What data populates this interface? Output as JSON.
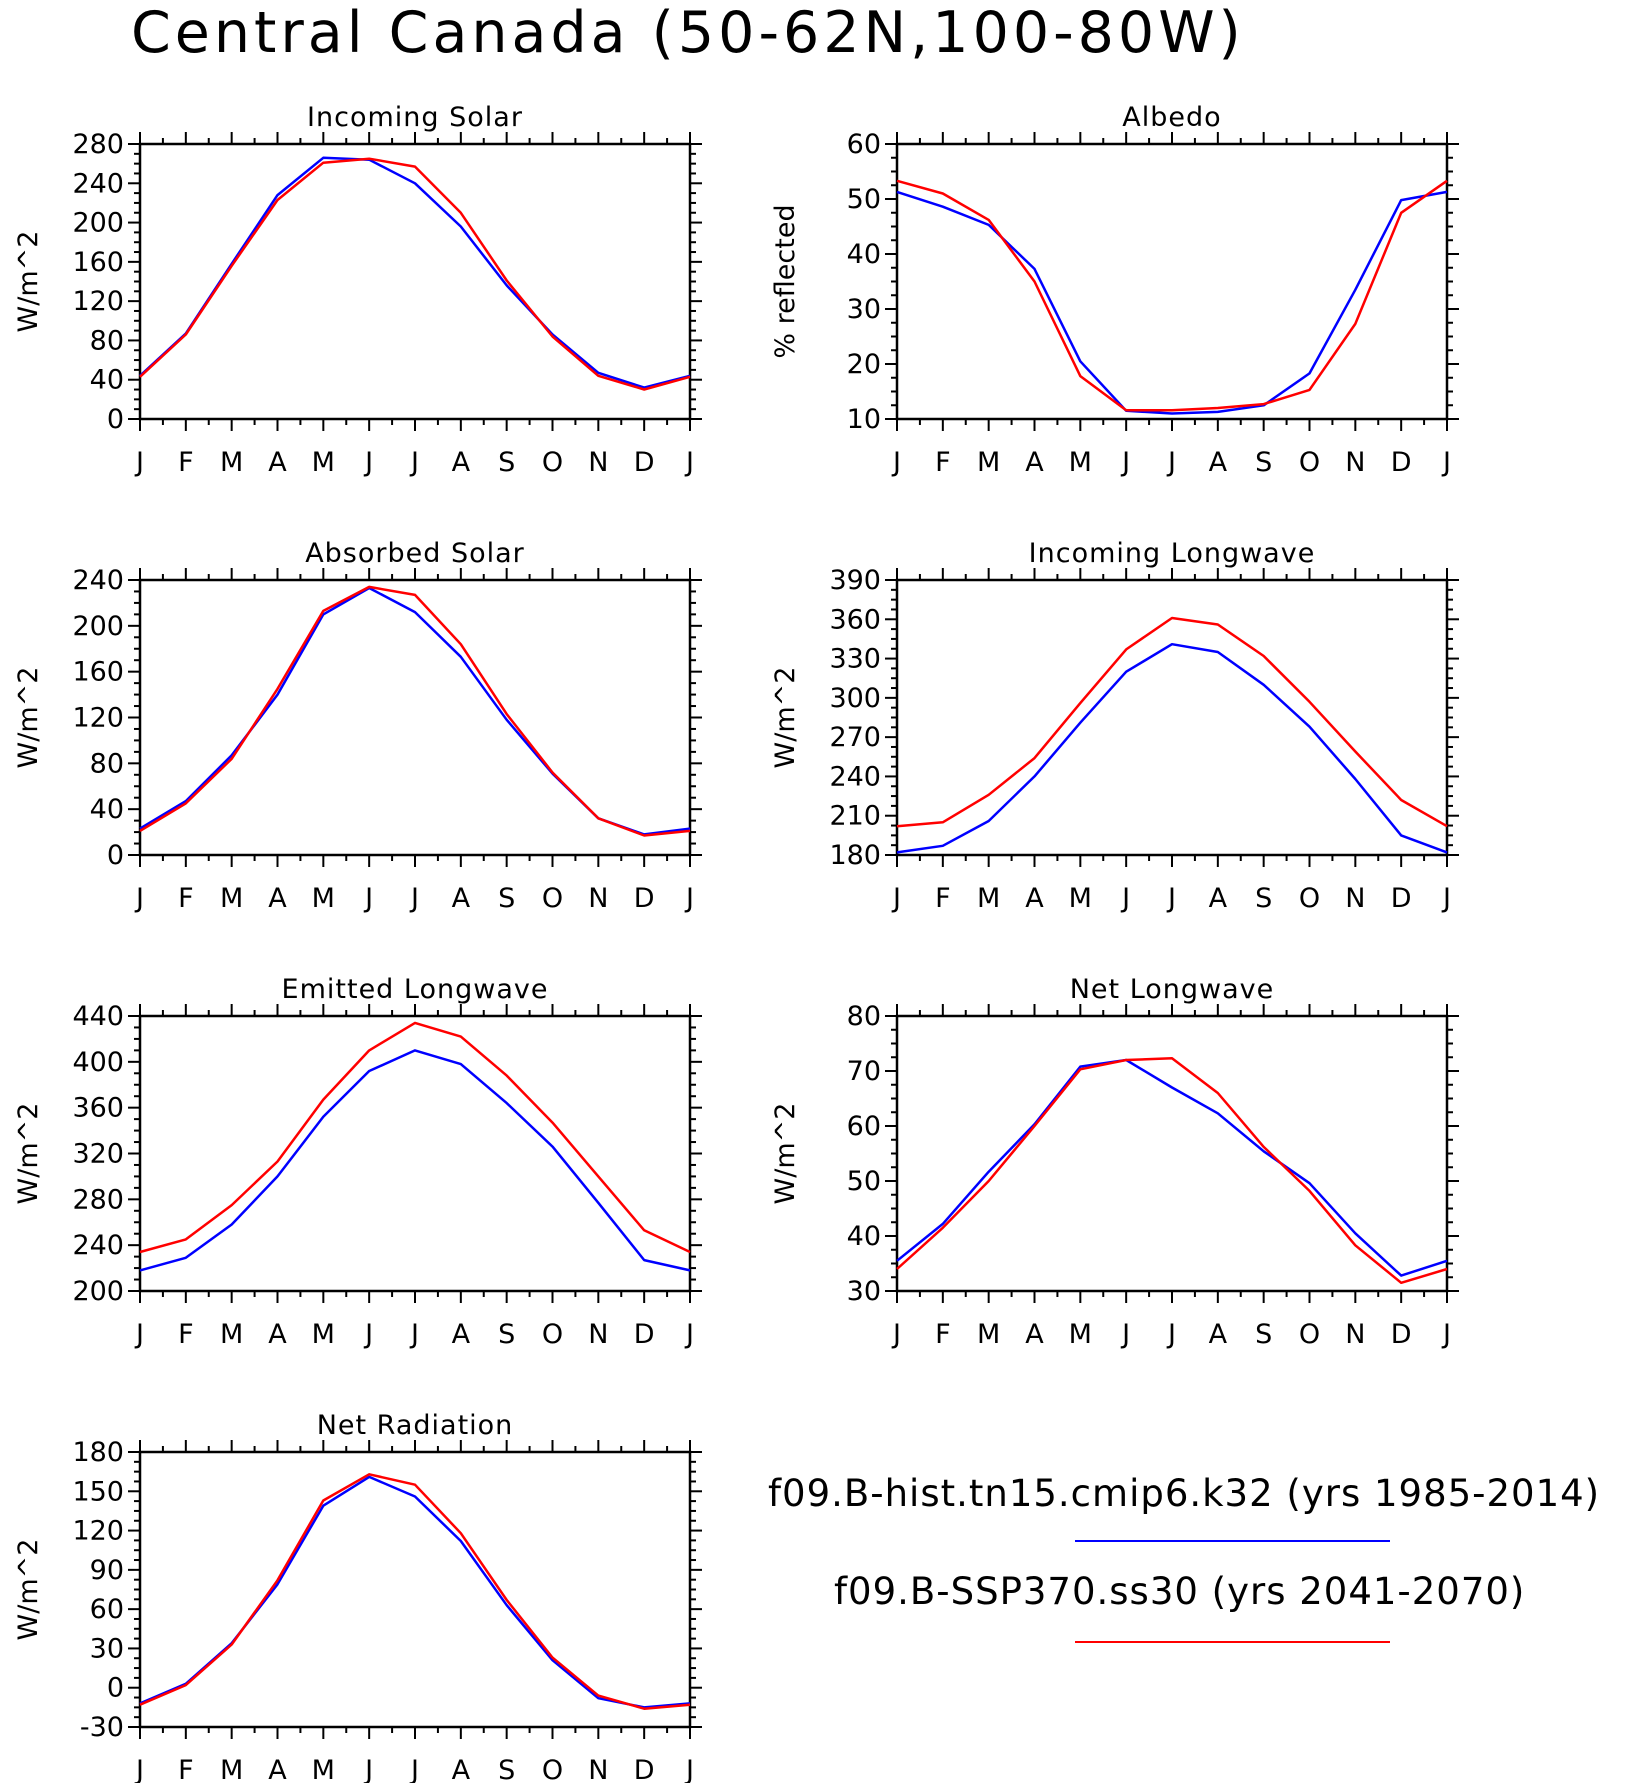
{
  "figure": {
    "title": "Central Canada (50-62N,100-80W)"
  },
  "legend": {
    "placement": "bottom-right",
    "entries": [
      {
        "label": "f09.B-hist.tn15.cmip6.k32 (yrs 1985-2014)",
        "color": "#0000ff"
      },
      {
        "label": "f09.B-SSP370.ss30 (yrs 2041-2070)",
        "color": "#ff0000"
      }
    ]
  },
  "chart_data": [
    {
      "type": "line",
      "title": "Incoming Solar",
      "ylabel": "W/m^2",
      "xlabel": "",
      "ylim": [
        0,
        280
      ],
      "yticks": [
        0,
        40,
        80,
        120,
        160,
        200,
        240,
        280
      ],
      "categories": [
        "J",
        "F",
        "M",
        "A",
        "M",
        "J",
        "J",
        "A",
        "S",
        "O",
        "N",
        "D",
        "J"
      ],
      "grid": false,
      "series": [
        {
          "name": "f09.B-hist.tn15.cmip6.k32 (yrs 1985-2014)",
          "color": "#0000ff",
          "values": [
            44,
            87,
            158,
            228,
            266,
            264,
            240,
            196,
            136,
            86,
            47,
            32,
            44
          ]
        },
        {
          "name": "f09.B-SSP370.ss30 (yrs 2041-2070)",
          "color": "#ff0000",
          "values": [
            43,
            86,
            156,
            223,
            261,
            265,
            257,
            210,
            141,
            84,
            44,
            30,
            43
          ]
        }
      ]
    },
    {
      "type": "line",
      "title": "Albedo",
      "ylabel": "% reflected",
      "xlabel": "",
      "ylim": [
        10,
        60
      ],
      "yticks": [
        10,
        20,
        30,
        40,
        50,
        60
      ],
      "categories": [
        "J",
        "F",
        "M",
        "A",
        "M",
        "J",
        "J",
        "A",
        "S",
        "O",
        "N",
        "D",
        "J"
      ],
      "grid": false,
      "series": [
        {
          "name": "f09.B-hist.tn15.cmip6.k32 (yrs 1985-2014)",
          "color": "#0000ff",
          "values": [
            51.3,
            48.6,
            45.3,
            37.3,
            20.5,
            11.5,
            11.0,
            11.3,
            12.5,
            18.3,
            33.5,
            49.8,
            51.3
          ]
        },
        {
          "name": "f09.B-SSP370.ss30 (yrs 2041-2070)",
          "color": "#ff0000",
          "values": [
            53.3,
            51.0,
            46.2,
            35.0,
            17.8,
            11.6,
            11.6,
            12.0,
            12.7,
            15.3,
            27.3,
            47.5,
            53.3
          ]
        }
      ]
    },
    {
      "type": "line",
      "title": "Absorbed Solar",
      "ylabel": "W/m^2",
      "xlabel": "",
      "ylim": [
        0,
        240
      ],
      "yticks": [
        0,
        40,
        80,
        120,
        160,
        200,
        240
      ],
      "categories": [
        "J",
        "F",
        "M",
        "A",
        "M",
        "J",
        "J",
        "A",
        "S",
        "O",
        "N",
        "D",
        "J"
      ],
      "grid": false,
      "series": [
        {
          "name": "f09.B-hist.tn15.cmip6.k32 (yrs 1985-2014)",
          "color": "#0000ff",
          "values": [
            23,
            47,
            87,
            140,
            210,
            233,
            212,
            173,
            118,
            71,
            32,
            18,
            23
          ]
        },
        {
          "name": "f09.B-SSP370.ss30 (yrs 2041-2070)",
          "color": "#ff0000",
          "values": [
            21,
            45,
            84,
            145,
            213,
            234,
            227,
            184,
            123,
            72,
            32,
            17,
            21
          ]
        }
      ]
    },
    {
      "type": "line",
      "title": "Incoming Longwave",
      "ylabel": "W/m^2",
      "xlabel": "",
      "ylim": [
        180,
        390
      ],
      "yticks": [
        180,
        210,
        240,
        270,
        300,
        330,
        360,
        390
      ],
      "categories": [
        "J",
        "F",
        "M",
        "A",
        "M",
        "J",
        "J",
        "A",
        "S",
        "O",
        "N",
        "D",
        "J"
      ],
      "grid": false,
      "series": [
        {
          "name": "f09.B-hist.tn15.cmip6.k32 (yrs 1985-2014)",
          "color": "#0000ff",
          "values": [
            182,
            187,
            206,
            240,
            281,
            320,
            341,
            335,
            310,
            278,
            238,
            195,
            182
          ]
        },
        {
          "name": "f09.B-SSP370.ss30 (yrs 2041-2070)",
          "color": "#ff0000",
          "values": [
            202,
            205,
            226,
            254,
            296,
            337,
            361,
            356,
            332,
            297,
            259,
            222,
            202
          ]
        }
      ]
    },
    {
      "type": "line",
      "title": "Emitted Longwave",
      "ylabel": "W/m^2",
      "xlabel": "",
      "ylim": [
        200,
        440
      ],
      "yticks": [
        200,
        240,
        280,
        320,
        360,
        400,
        440
      ],
      "categories": [
        "J",
        "F",
        "M",
        "A",
        "M",
        "J",
        "J",
        "A",
        "S",
        "O",
        "N",
        "D",
        "J"
      ],
      "grid": false,
      "series": [
        {
          "name": "f09.B-hist.tn15.cmip6.k32 (yrs 1985-2014)",
          "color": "#0000ff",
          "values": [
            218,
            229,
            258,
            300,
            352,
            392,
            410,
            398,
            364,
            326,
            277,
            227,
            218
          ]
        },
        {
          "name": "f09.B-SSP370.ss30 (yrs 2041-2070)",
          "color": "#ff0000",
          "values": [
            234,
            245,
            275,
            313,
            367,
            410,
            434,
            422,
            388,
            347,
            300,
            253,
            234
          ]
        }
      ]
    },
    {
      "type": "line",
      "title": "Net Longwave",
      "ylabel": "W/m^2",
      "xlabel": "",
      "ylim": [
        30,
        80
      ],
      "yticks": [
        30,
        40,
        50,
        60,
        70,
        80
      ],
      "categories": [
        "J",
        "F",
        "M",
        "A",
        "M",
        "J",
        "J",
        "A",
        "S",
        "O",
        "N",
        "D",
        "J"
      ],
      "grid": false,
      "series": [
        {
          "name": "f09.B-hist.tn15.cmip6.k32 (yrs 1985-2014)",
          "color": "#0000ff",
          "values": [
            35.5,
            42.2,
            51.7,
            60.3,
            70.8,
            72.0,
            67.0,
            62.3,
            55.4,
            49.6,
            40.5,
            32.8,
            35.5
          ]
        },
        {
          "name": "f09.B-SSP370.ss30 (yrs 2041-2070)",
          "color": "#ff0000",
          "values": [
            34.0,
            41.5,
            50.0,
            60.0,
            70.3,
            72.0,
            72.3,
            66.0,
            56.2,
            48.2,
            38.3,
            31.5,
            34.0
          ]
        }
      ]
    },
    {
      "type": "line",
      "title": "Net Radiation",
      "ylabel": "W/m^2",
      "xlabel": "",
      "ylim": [
        -30,
        180
      ],
      "yticks": [
        -30,
        0,
        30,
        60,
        90,
        120,
        150,
        180
      ],
      "categories": [
        "J",
        "F",
        "M",
        "A",
        "M",
        "J",
        "J",
        "A",
        "S",
        "O",
        "N",
        "D",
        "J"
      ],
      "grid": false,
      "series": [
        {
          "name": "f09.B-hist.tn15.cmip6.k32 (yrs 1985-2014)",
          "color": "#0000ff",
          "values": [
            -12,
            3,
            34,
            79,
            139,
            161,
            146,
            112,
            63,
            21,
            -8,
            -15,
            -12
          ]
        },
        {
          "name": "f09.B-SSP370.ss30 (yrs 2041-2070)",
          "color": "#ff0000",
          "values": [
            -13,
            2,
            33,
            82,
            143,
            163,
            155,
            118,
            67,
            23,
            -6,
            -16,
            -13
          ]
        }
      ]
    }
  ]
}
